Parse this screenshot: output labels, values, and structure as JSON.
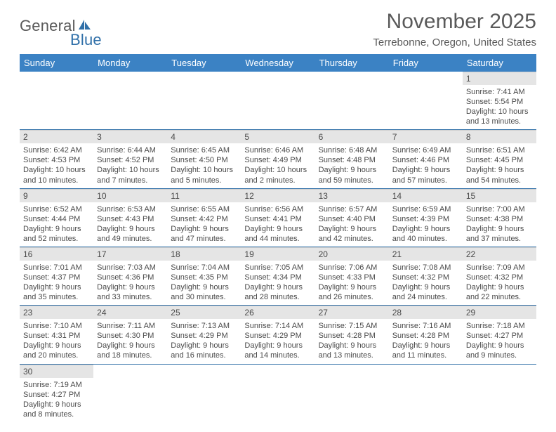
{
  "brand": {
    "part1": "General",
    "part2": "Blue"
  },
  "title": "November 2025",
  "location": "Terrebonne, Oregon, United States",
  "colors": {
    "header_bg": "#3b82c4",
    "header_text": "#ffffff",
    "rule": "#2f6fa8",
    "daynum_bg": "#e5e5e5",
    "text": "#4a4a4a",
    "brand_blue": "#2f6fa8"
  },
  "weekdays": [
    "Sunday",
    "Monday",
    "Tuesday",
    "Wednesday",
    "Thursday",
    "Friday",
    "Saturday"
  ],
  "weeks": [
    [
      {
        "blank": true
      },
      {
        "blank": true
      },
      {
        "blank": true
      },
      {
        "blank": true
      },
      {
        "blank": true
      },
      {
        "blank": true
      },
      {
        "n": "1",
        "sunrise": "Sunrise: 7:41 AM",
        "sunset": "Sunset: 5:54 PM",
        "day1": "Daylight: 10 hours",
        "day2": "and 13 minutes."
      }
    ],
    [
      {
        "n": "2",
        "sunrise": "Sunrise: 6:42 AM",
        "sunset": "Sunset: 4:53 PM",
        "day1": "Daylight: 10 hours",
        "day2": "and 10 minutes."
      },
      {
        "n": "3",
        "sunrise": "Sunrise: 6:44 AM",
        "sunset": "Sunset: 4:52 PM",
        "day1": "Daylight: 10 hours",
        "day2": "and 7 minutes."
      },
      {
        "n": "4",
        "sunrise": "Sunrise: 6:45 AM",
        "sunset": "Sunset: 4:50 PM",
        "day1": "Daylight: 10 hours",
        "day2": "and 5 minutes."
      },
      {
        "n": "5",
        "sunrise": "Sunrise: 6:46 AM",
        "sunset": "Sunset: 4:49 PM",
        "day1": "Daylight: 10 hours",
        "day2": "and 2 minutes."
      },
      {
        "n": "6",
        "sunrise": "Sunrise: 6:48 AM",
        "sunset": "Sunset: 4:48 PM",
        "day1": "Daylight: 9 hours",
        "day2": "and 59 minutes."
      },
      {
        "n": "7",
        "sunrise": "Sunrise: 6:49 AM",
        "sunset": "Sunset: 4:46 PM",
        "day1": "Daylight: 9 hours",
        "day2": "and 57 minutes."
      },
      {
        "n": "8",
        "sunrise": "Sunrise: 6:51 AM",
        "sunset": "Sunset: 4:45 PM",
        "day1": "Daylight: 9 hours",
        "day2": "and 54 minutes."
      }
    ],
    [
      {
        "n": "9",
        "sunrise": "Sunrise: 6:52 AM",
        "sunset": "Sunset: 4:44 PM",
        "day1": "Daylight: 9 hours",
        "day2": "and 52 minutes."
      },
      {
        "n": "10",
        "sunrise": "Sunrise: 6:53 AM",
        "sunset": "Sunset: 4:43 PM",
        "day1": "Daylight: 9 hours",
        "day2": "and 49 minutes."
      },
      {
        "n": "11",
        "sunrise": "Sunrise: 6:55 AM",
        "sunset": "Sunset: 4:42 PM",
        "day1": "Daylight: 9 hours",
        "day2": "and 47 minutes."
      },
      {
        "n": "12",
        "sunrise": "Sunrise: 6:56 AM",
        "sunset": "Sunset: 4:41 PM",
        "day1": "Daylight: 9 hours",
        "day2": "and 44 minutes."
      },
      {
        "n": "13",
        "sunrise": "Sunrise: 6:57 AM",
        "sunset": "Sunset: 4:40 PM",
        "day1": "Daylight: 9 hours",
        "day2": "and 42 minutes."
      },
      {
        "n": "14",
        "sunrise": "Sunrise: 6:59 AM",
        "sunset": "Sunset: 4:39 PM",
        "day1": "Daylight: 9 hours",
        "day2": "and 40 minutes."
      },
      {
        "n": "15",
        "sunrise": "Sunrise: 7:00 AM",
        "sunset": "Sunset: 4:38 PM",
        "day1": "Daylight: 9 hours",
        "day2": "and 37 minutes."
      }
    ],
    [
      {
        "n": "16",
        "sunrise": "Sunrise: 7:01 AM",
        "sunset": "Sunset: 4:37 PM",
        "day1": "Daylight: 9 hours",
        "day2": "and 35 minutes."
      },
      {
        "n": "17",
        "sunrise": "Sunrise: 7:03 AM",
        "sunset": "Sunset: 4:36 PM",
        "day1": "Daylight: 9 hours",
        "day2": "and 33 minutes."
      },
      {
        "n": "18",
        "sunrise": "Sunrise: 7:04 AM",
        "sunset": "Sunset: 4:35 PM",
        "day1": "Daylight: 9 hours",
        "day2": "and 30 minutes."
      },
      {
        "n": "19",
        "sunrise": "Sunrise: 7:05 AM",
        "sunset": "Sunset: 4:34 PM",
        "day1": "Daylight: 9 hours",
        "day2": "and 28 minutes."
      },
      {
        "n": "20",
        "sunrise": "Sunrise: 7:06 AM",
        "sunset": "Sunset: 4:33 PM",
        "day1": "Daylight: 9 hours",
        "day2": "and 26 minutes."
      },
      {
        "n": "21",
        "sunrise": "Sunrise: 7:08 AM",
        "sunset": "Sunset: 4:32 PM",
        "day1": "Daylight: 9 hours",
        "day2": "and 24 minutes."
      },
      {
        "n": "22",
        "sunrise": "Sunrise: 7:09 AM",
        "sunset": "Sunset: 4:32 PM",
        "day1": "Daylight: 9 hours",
        "day2": "and 22 minutes."
      }
    ],
    [
      {
        "n": "23",
        "sunrise": "Sunrise: 7:10 AM",
        "sunset": "Sunset: 4:31 PM",
        "day1": "Daylight: 9 hours",
        "day2": "and 20 minutes."
      },
      {
        "n": "24",
        "sunrise": "Sunrise: 7:11 AM",
        "sunset": "Sunset: 4:30 PM",
        "day1": "Daylight: 9 hours",
        "day2": "and 18 minutes."
      },
      {
        "n": "25",
        "sunrise": "Sunrise: 7:13 AM",
        "sunset": "Sunset: 4:29 PM",
        "day1": "Daylight: 9 hours",
        "day2": "and 16 minutes."
      },
      {
        "n": "26",
        "sunrise": "Sunrise: 7:14 AM",
        "sunset": "Sunset: 4:29 PM",
        "day1": "Daylight: 9 hours",
        "day2": "and 14 minutes."
      },
      {
        "n": "27",
        "sunrise": "Sunrise: 7:15 AM",
        "sunset": "Sunset: 4:28 PM",
        "day1": "Daylight: 9 hours",
        "day2": "and 13 minutes."
      },
      {
        "n": "28",
        "sunrise": "Sunrise: 7:16 AM",
        "sunset": "Sunset: 4:28 PM",
        "day1": "Daylight: 9 hours",
        "day2": "and 11 minutes."
      },
      {
        "n": "29",
        "sunrise": "Sunrise: 7:18 AM",
        "sunset": "Sunset: 4:27 PM",
        "day1": "Daylight: 9 hours",
        "day2": "and 9 minutes."
      }
    ],
    [
      {
        "n": "30",
        "sunrise": "Sunrise: 7:19 AM",
        "sunset": "Sunset: 4:27 PM",
        "day1": "Daylight: 9 hours",
        "day2": "and 8 minutes."
      },
      {
        "blank": true
      },
      {
        "blank": true
      },
      {
        "blank": true
      },
      {
        "blank": true
      },
      {
        "blank": true
      },
      {
        "blank": true
      }
    ]
  ]
}
